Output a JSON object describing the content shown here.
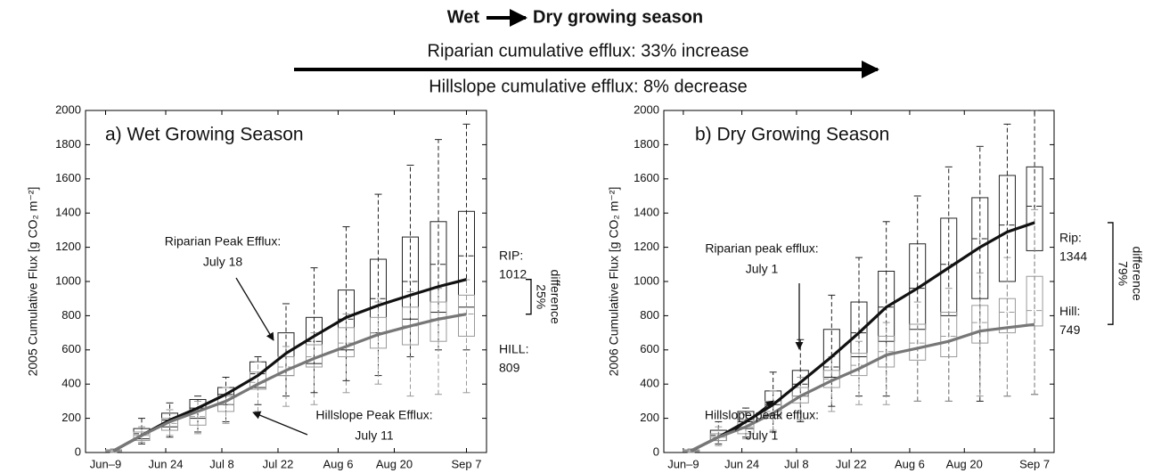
{
  "header": {
    "from": "Wet",
    "to": "Dry growing season",
    "riparian": "Riparian cumulative efflux:  33% increase",
    "hillslope": "Hillslope cumulative efflux:  8% decrease"
  },
  "chart_data": [
    {
      "type": "boxline",
      "title": "a) Wet Growing Season",
      "ylabel": "2005 Cumulative Flux [g CO₂ m⁻²]",
      "x": [
        2,
        9,
        16,
        23,
        30,
        38,
        45,
        52,
        60,
        68,
        76,
        83,
        90
      ],
      "xlim": [
        -5,
        95
      ],
      "xticks": [
        {
          "value": 0,
          "label": "Jun–9"
        },
        {
          "value": 15,
          "label": "Jun 24"
        },
        {
          "value": 29,
          "label": "Jul 8"
        },
        {
          "value": 43,
          "label": "Jul 22"
        },
        {
          "value": 58,
          "label": "Aug 6"
        },
        {
          "value": 72,
          "label": "Aug 20"
        },
        {
          "value": 90,
          "label": "Sep 7"
        }
      ],
      "ylim": [
        0,
        2000
      ],
      "yticks": [
        0,
        200,
        400,
        600,
        800,
        1000,
        1200,
        1400,
        1600,
        1800,
        2000
      ],
      "series": [
        {
          "label": "RIP:",
          "color": "#111111",
          "box_color": "#222222",
          "values": [
            10,
            100,
            190,
            260,
            340,
            450,
            580,
            680,
            790,
            860,
            920,
            970,
            1012
          ],
          "box": {
            "lo": [
              0,
              50,
              90,
              120,
              180,
              280,
              330,
              350,
              420,
              450,
              560,
              600,
              600
            ],
            "q1": [
              5,
              80,
              150,
              200,
              280,
              380,
              450,
              520,
              600,
              700,
              780,
              820,
              850
            ],
            "median": [
              10,
              110,
              190,
              260,
              340,
              460,
              560,
              650,
              780,
              900,
              1000,
              1100,
              1150
            ],
            "q3": [
              15,
              140,
              230,
              310,
              380,
              530,
              700,
              790,
              950,
              1130,
              1260,
              1350,
              1410
            ],
            "hi": [
              20,
              200,
              290,
              330,
              440,
              560,
              870,
              1080,
              1320,
              1510,
              1680,
              1830,
              1920
            ]
          }
        },
        {
          "label": "HILL:",
          "color": "#777777",
          "box_color": "#999999",
          "values": [
            10,
            100,
            180,
            240,
            300,
            400,
            480,
            550,
            620,
            690,
            740,
            780,
            809
          ],
          "box": {
            "lo": [
              0,
              60,
              100,
              110,
              170,
              240,
              270,
              280,
              350,
              400,
              330,
              340,
              350
            ],
            "q1": [
              5,
              70,
              130,
              160,
              240,
              370,
              450,
              500,
              560,
              610,
              630,
              650,
              680
            ],
            "median": [
              10,
              100,
              170,
              210,
              280,
              410,
              500,
              560,
              640,
              700,
              740,
              780,
              810
            ],
            "q3": [
              15,
              120,
              200,
              250,
              330,
              470,
              560,
              630,
              730,
              790,
              850,
              880,
              920
            ],
            "hi": [
              20,
              150,
              250,
              300,
              380,
              530,
              620,
              700,
              810,
              880,
              940,
              960,
              1010
            ]
          }
        }
      ],
      "annotations": [
        [
          "Riparian Peak Efflux:",
          "July 18"
        ],
        [
          "Hillslope Peak Efflux:",
          "July 11"
        ]
      ],
      "difference_label": [
        "25%",
        "difference"
      ]
    },
    {
      "type": "boxline",
      "title": "b) Dry Growing Season",
      "ylabel": "2006 Cumulative Flux [g CO₂ m⁻²]",
      "x": [
        2,
        9,
        16,
        23,
        30,
        38,
        45,
        52,
        60,
        68,
        76,
        83,
        90
      ],
      "xlim": [
        -5,
        95
      ],
      "xticks": [
        {
          "value": 0,
          "label": "Jun–9"
        },
        {
          "value": 15,
          "label": "Jun 24"
        },
        {
          "value": 29,
          "label": "Jul 8"
        },
        {
          "value": 43,
          "label": "Jul 22"
        },
        {
          "value": 58,
          "label": "Aug 6"
        },
        {
          "value": 72,
          "label": "Aug 20"
        },
        {
          "value": 90,
          "label": "Sep 7"
        }
      ],
      "ylim": [
        0,
        2000
      ],
      "yticks": [
        0,
        200,
        400,
        600,
        800,
        1000,
        1200,
        1400,
        1600,
        1800,
        2000
      ],
      "series": [
        {
          "label": "Rip:",
          "color": "#111111",
          "box_color": "#222222",
          "values": [
            10,
            90,
            180,
            280,
            410,
            560,
            700,
            850,
            960,
            1080,
            1200,
            1290,
            1344
          ],
          "box": {
            "lo": [
              0,
              50,
              90,
              120,
              180,
              270,
              330,
              330,
              300,
              300,
              300,
              330,
              340
            ],
            "q1": [
              5,
              70,
              140,
              220,
              330,
              440,
              560,
              650,
              720,
              800,
              900,
              1000,
              1180
            ],
            "median": [
              10,
              100,
              180,
              280,
              400,
              500,
              700,
              850,
              960,
              1100,
              1250,
              1330,
              1440
            ],
            "q3": [
              15,
              130,
              240,
              360,
              480,
              720,
              880,
              1060,
              1220,
              1370,
              1490,
              1620,
              1670
            ],
            "hi": [
              20,
              180,
              260,
              470,
              660,
              920,
              1140,
              1350,
              1500,
              1670,
              1790,
              1920,
              2000
            ]
          }
        },
        {
          "label": "Hill:",
          "color": "#777777",
          "box_color": "#999999",
          "values": [
            10,
            90,
            150,
            230,
            330,
            420,
            490,
            570,
            610,
            650,
            710,
            730,
            749
          ],
          "box": {
            "lo": [
              0,
              40,
              80,
              130,
              190,
              240,
              280,
              280,
              300,
              300,
              330,
              330,
              340
            ],
            "q1": [
              5,
              70,
              110,
              200,
              290,
              380,
              450,
              500,
              540,
              560,
              640,
              700,
              740
            ],
            "median": [
              10,
              90,
              150,
              240,
              330,
              430,
              510,
              590,
              640,
              680,
              760,
              820,
              830
            ],
            "q3": [
              15,
              110,
              190,
              300,
              380,
              480,
              580,
              680,
              750,
              820,
              860,
              900,
              1030
            ],
            "hi": [
              20,
              150,
              220,
              360,
              440,
              560,
              650,
              760,
              880,
              960,
              1050,
              1140,
              1420
            ]
          }
        }
      ],
      "annotations": [
        [
          "Riparian peak efflux:",
          "July 1"
        ],
        [
          "Hillslope peak efflux:",
          "July 1"
        ]
      ],
      "difference_label": [
        "79%",
        "difference"
      ]
    }
  ]
}
